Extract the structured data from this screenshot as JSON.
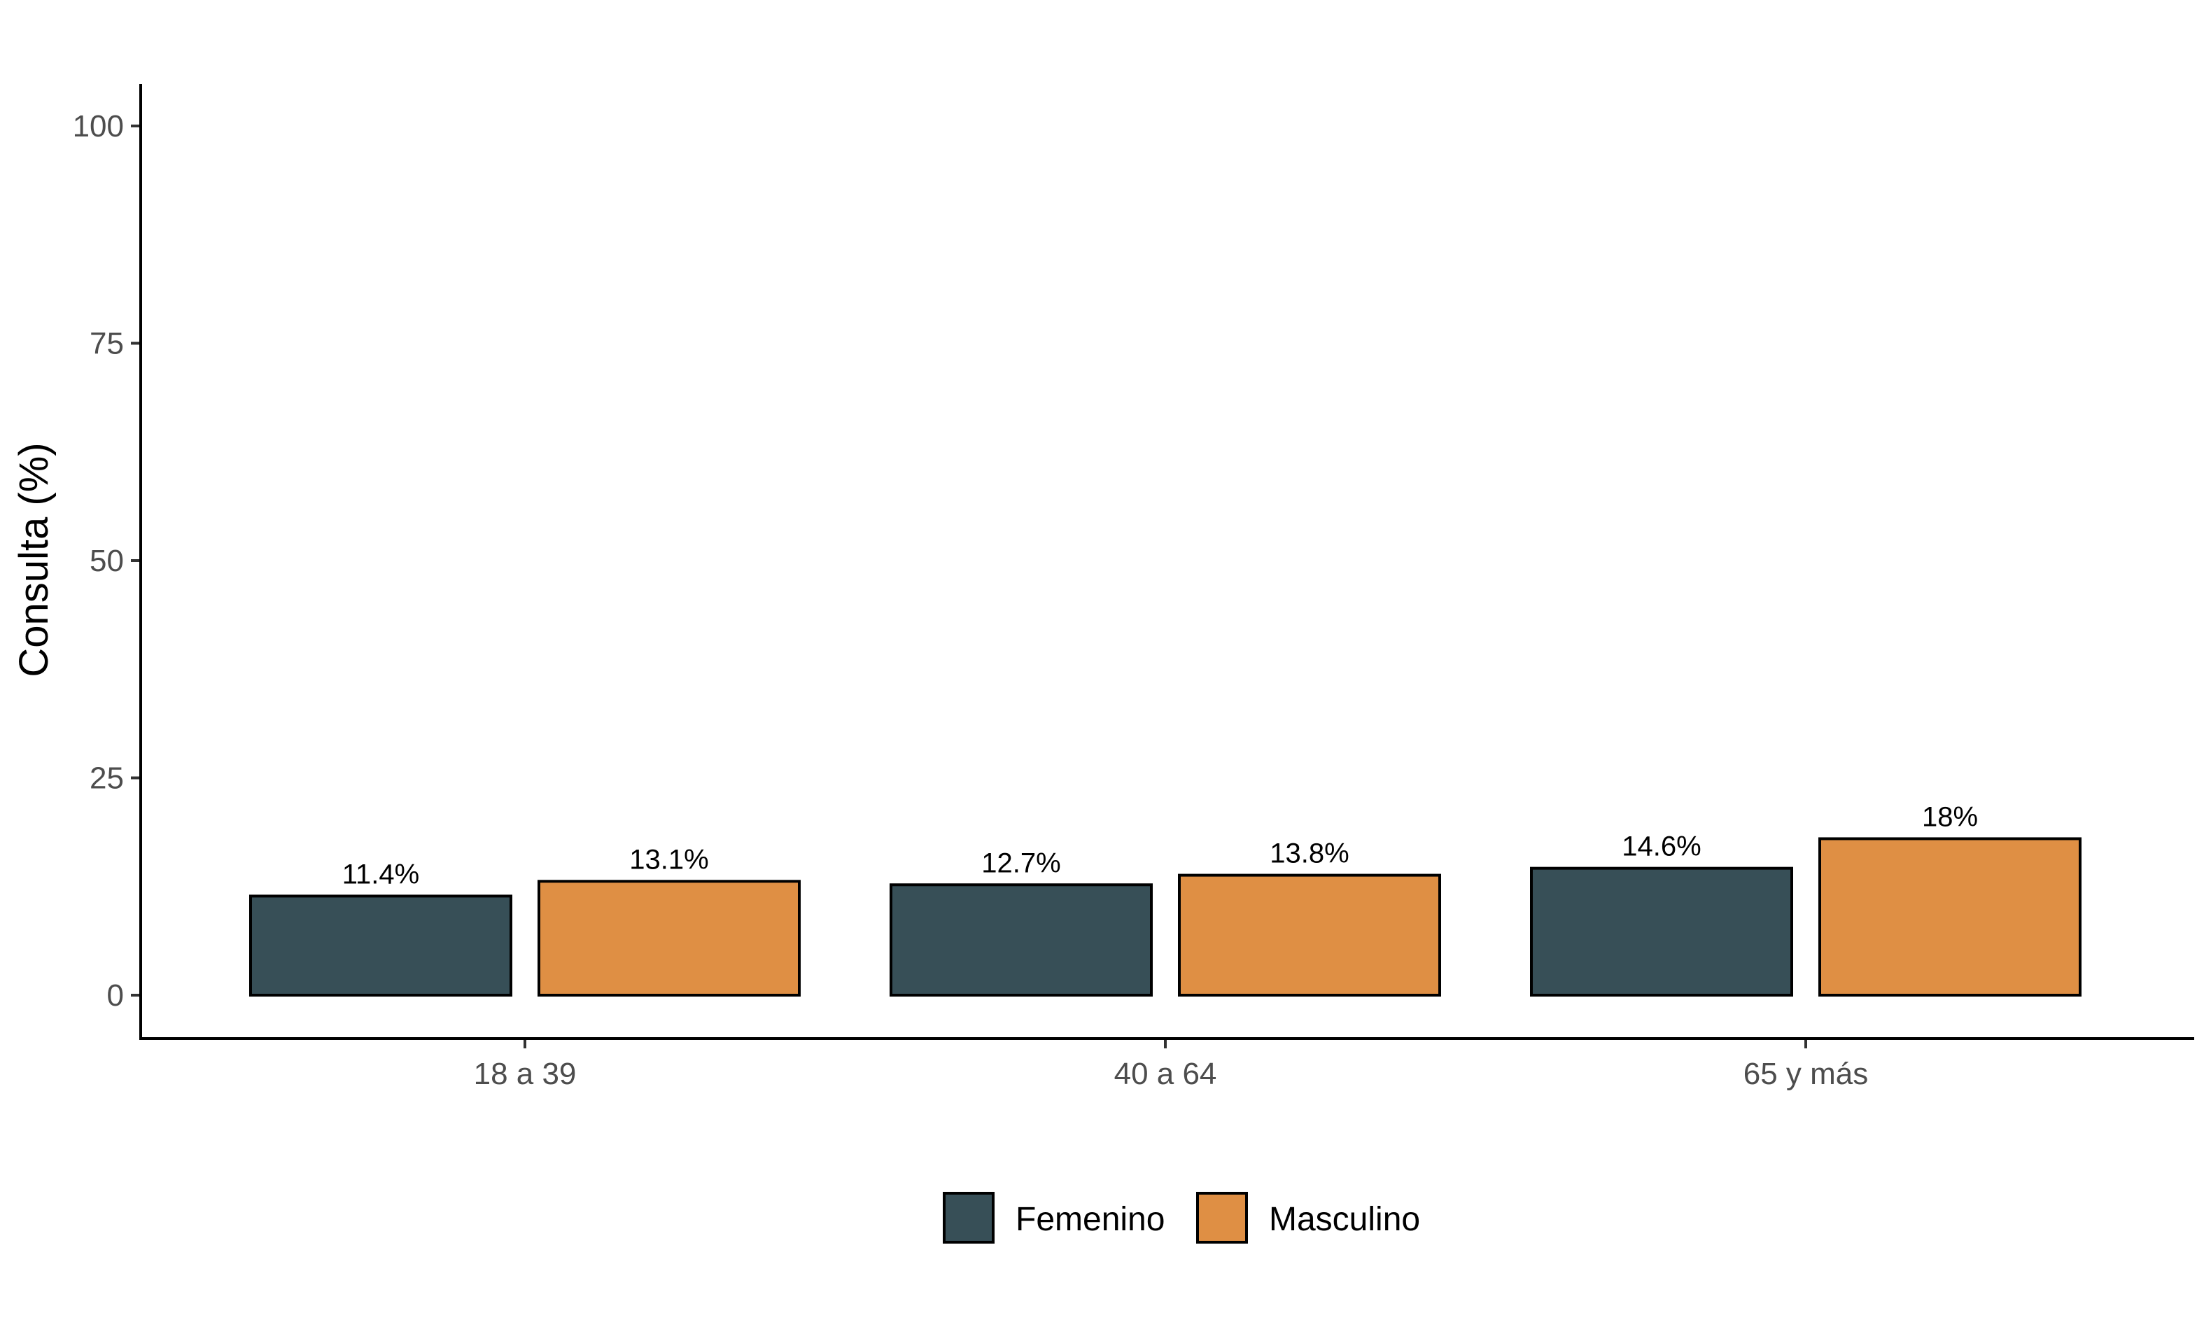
{
  "chart_data": {
    "type": "bar",
    "ylabel": "Consulta (%)",
    "xlabel": "",
    "ylim": [
      -5,
      105
    ],
    "yticks": [
      0,
      25,
      50,
      75,
      100
    ],
    "categories": [
      "18 a 39",
      "40 a 64",
      "65 y más"
    ],
    "series": [
      {
        "name": "Femenino",
        "color": "#374F57",
        "values": [
          11.4,
          12.7,
          14.6
        ],
        "labels": [
          "11.4%",
          "12.7%",
          "14.6%"
        ]
      },
      {
        "name": "Masculino",
        "color": "#DF8F44",
        "values": [
          13.1,
          13.8,
          18
        ],
        "labels": [
          "13.1%",
          "13.8%",
          "18%"
        ]
      }
    ],
    "legend_position": "bottom",
    "grid": false
  }
}
